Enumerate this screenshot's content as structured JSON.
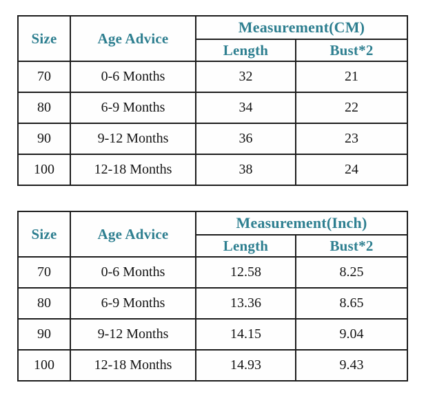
{
  "colors": {
    "header_text": "#2E7F90",
    "body_text": "#141414",
    "border": "#1C1C1C",
    "background": "#FFFFFF"
  },
  "chart_data": [
    {
      "type": "table",
      "name": "size-chart-cm",
      "header": {
        "col_size": "Size",
        "col_age": "Age Advice",
        "group_measurement": "Measurement(CM)",
        "col_length": "Length",
        "col_bust": "Bust*2"
      },
      "rows": [
        {
          "size": "70",
          "age": "0-6 Months",
          "length": "32",
          "bust": "21"
        },
        {
          "size": "80",
          "age": "6-9 Months",
          "length": "34",
          "bust": "22"
        },
        {
          "size": "90",
          "age": "9-12 Months",
          "length": "36",
          "bust": "23"
        },
        {
          "size": "100",
          "age": "12-18 Months",
          "length": "38",
          "bust": "24"
        }
      ]
    },
    {
      "type": "table",
      "name": "size-chart-inch",
      "header": {
        "col_size": "Size",
        "col_age": "Age Advice",
        "group_measurement": "Measurement(Inch)",
        "col_length": "Length",
        "col_bust": "Bust*2"
      },
      "rows": [
        {
          "size": "70",
          "age": "0-6 Months",
          "length": "12.58",
          "bust": "8.25"
        },
        {
          "size": "80",
          "age": "6-9 Months",
          "length": "13.36",
          "bust": "8.65"
        },
        {
          "size": "90",
          "age": "9-12 Months",
          "length": "14.15",
          "bust": "9.04"
        },
        {
          "size": "100",
          "age": "12-18 Months",
          "length": "14.93",
          "bust": "9.43"
        }
      ]
    }
  ]
}
